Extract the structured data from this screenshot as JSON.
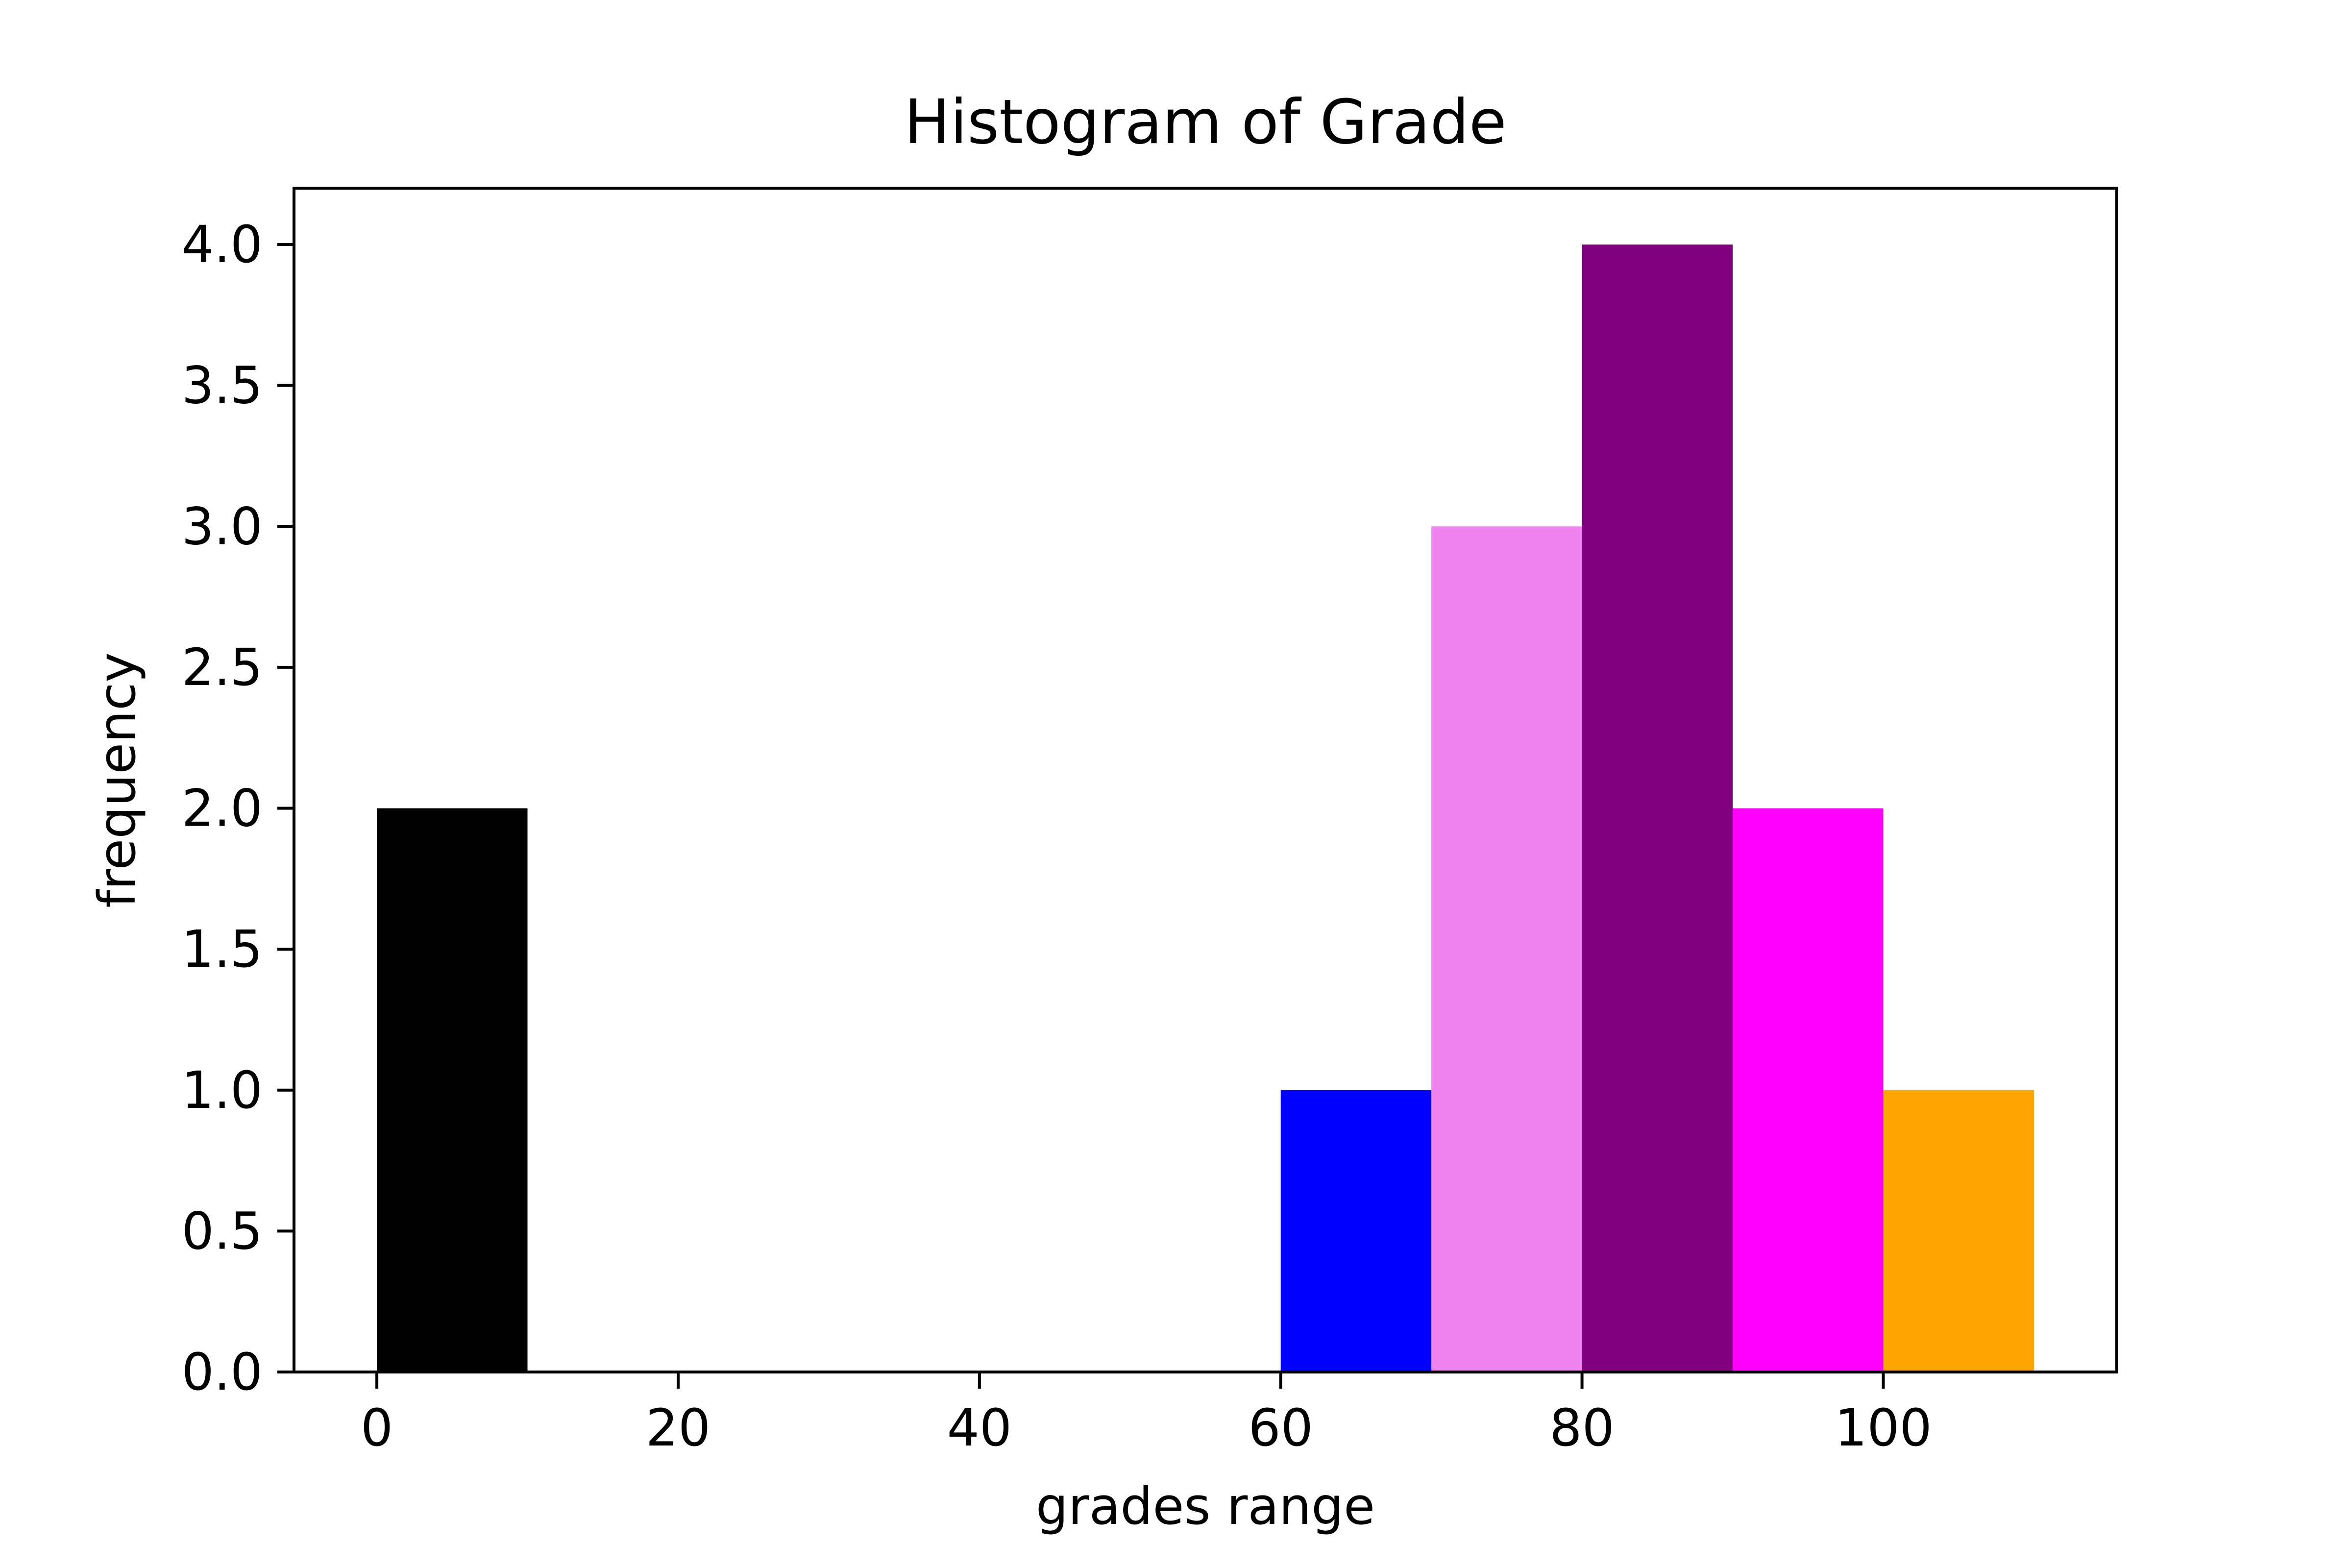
{
  "chart_data": {
    "type": "bar",
    "title": "Histogram of Grade",
    "xlabel": "grades range",
    "ylabel": "frequency",
    "xlim": [
      -5.5,
      115.5
    ],
    "ylim": [
      0,
      4.2
    ],
    "x_ticks": [
      0,
      20,
      40,
      60,
      80,
      100
    ],
    "y_ticks": [
      "0.0",
      "0.5",
      "1.0",
      "1.5",
      "2.0",
      "2.5",
      "3.0",
      "3.5",
      "4.0"
    ],
    "bins": [
      {
        "start": 0,
        "end": 10,
        "value": 2,
        "color": "#000000"
      },
      {
        "start": 60,
        "end": 70,
        "value": 1,
        "color": "#0000ff"
      },
      {
        "start": 70,
        "end": 80,
        "value": 3,
        "color": "#ee82ee"
      },
      {
        "start": 80,
        "end": 90,
        "value": 4,
        "color": "#800080"
      },
      {
        "start": 90,
        "end": 100,
        "value": 2,
        "color": "#ff00ff"
      },
      {
        "start": 100,
        "end": 110,
        "value": 1,
        "color": "#ffa500"
      }
    ],
    "grid": false,
    "legend": "none"
  }
}
